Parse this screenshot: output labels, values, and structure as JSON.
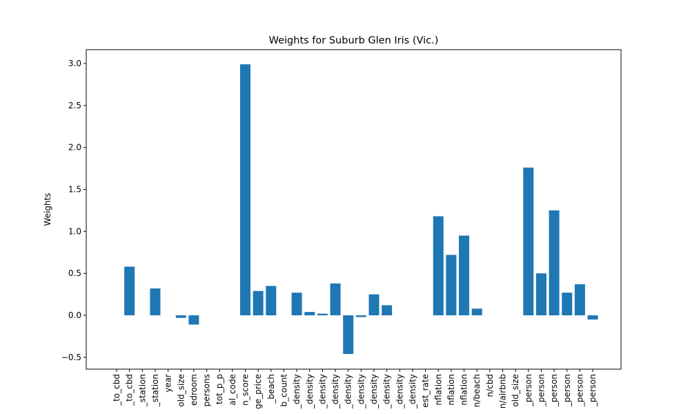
{
  "chart_data": {
    "type": "bar",
    "title": "Weights for Suburb Glen Iris (Vic.)",
    "xlabel": "",
    "ylabel": "Weights",
    "ylim": [
      -0.63,
      3.15
    ],
    "yticks": [
      -0.5,
      0.0,
      0.5,
      1.0,
      1.5,
      2.0,
      2.5,
      3.0
    ],
    "ytick_labels": [
      "−0.5",
      "0.0",
      "0.5",
      "1.0",
      "1.5",
      "2.0",
      "2.5",
      "3.0"
    ],
    "bar_color": "#1f77b4",
    "grid": false,
    "categories": [
      "_to_cbd",
      "_to_cbd",
      "_station",
      "_station",
      "year",
      "old_size",
      "edroom",
      "persons",
      "tot_p_p",
      "al_code",
      "n_score",
      "ge_price",
      "_beach",
      "b_count",
      "_density",
      "_density",
      "_density",
      "_density",
      "_density",
      "_density",
      "_density",
      "_density",
      "_density",
      "_density",
      "est_rate",
      "nflation",
      "nflation",
      "nflation",
      "n/beach",
      "n/cbd",
      "n/airbnb",
      "old_size",
      "_person",
      "_person",
      "_person",
      "_person",
      "_person",
      "_person"
    ],
    "values": [
      0.0,
      0.58,
      0.0,
      0.32,
      0.0,
      -0.03,
      -0.11,
      0.0,
      0.0,
      0.0,
      2.99,
      0.29,
      0.35,
      0.0,
      0.27,
      0.04,
      0.02,
      0.38,
      -0.46,
      -0.02,
      0.25,
      0.12,
      0.0,
      0.0,
      0.0,
      1.18,
      0.72,
      0.95,
      0.08,
      0.0,
      0.0,
      0.0,
      1.76,
      0.5,
      1.25,
      0.27,
      0.37,
      -0.05
    ]
  }
}
